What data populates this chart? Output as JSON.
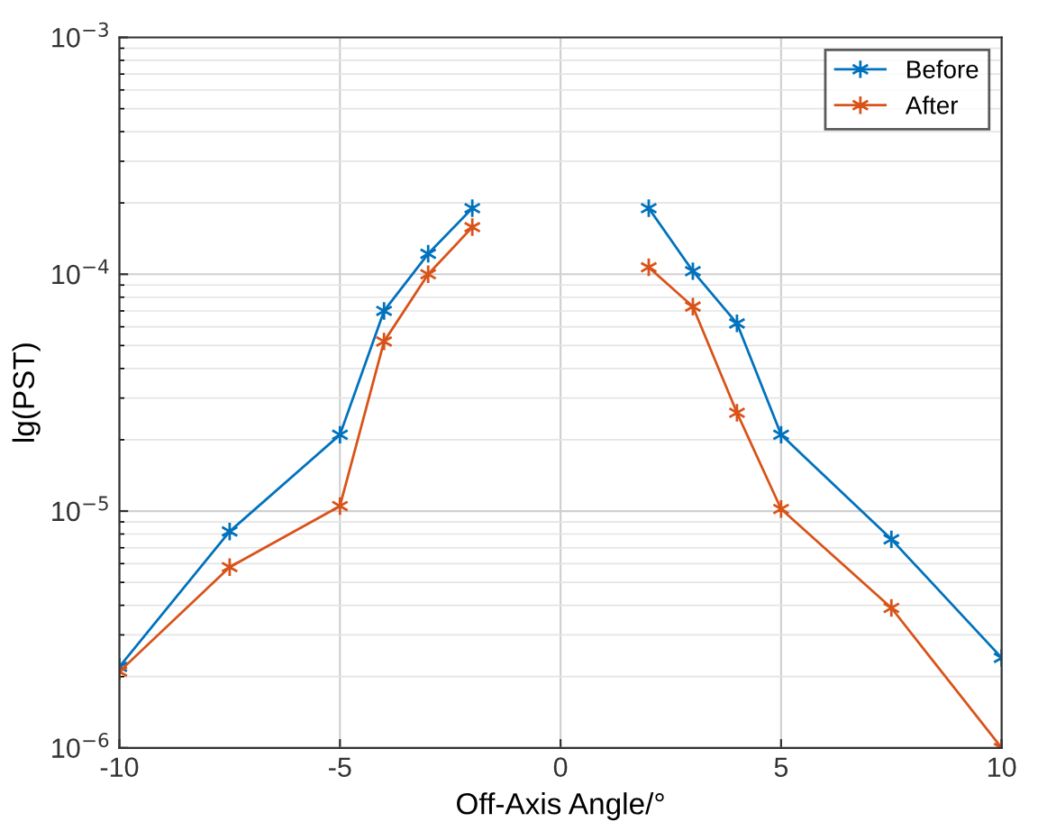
{
  "chart_data": {
    "type": "line",
    "xlabel": "Off-Axis Angle/°",
    "ylabel": "lg(PST)",
    "log": "y",
    "x": [
      -10,
      -7.5,
      -5,
      -4,
      -3,
      -2,
      0,
      2,
      3,
      4,
      5,
      7.5,
      10
    ],
    "series": [
      {
        "name": "Before",
        "color": "#0072bd",
        "values": [
          2.2e-06,
          8.2e-06,
          2.1e-05,
          7e-05,
          0.000122,
          0.00019,
          null,
          0.00019,
          0.000103,
          6.2e-05,
          2.1e-05,
          7.6e-06,
          2.4e-06
        ]
      },
      {
        "name": "After",
        "color": "#d95319",
        "values": [
          2.1e-06,
          5.8e-06,
          1.05e-05,
          5.2e-05,
          0.0001,
          0.000158,
          null,
          0.000107,
          7.3e-05,
          2.6e-05,
          1.02e-05,
          3.9e-06,
          1e-06
        ]
      }
    ],
    "xlim": [
      -10,
      10
    ],
    "xticks": [
      -10,
      -5,
      0,
      5,
      10
    ],
    "ylim": [
      1e-06,
      0.001
    ],
    "yticks": [
      {
        "value": 1e-06,
        "label": "10$^{−6}$"
      },
      {
        "value": 1e-05,
        "label": "10$^{−5}$"
      },
      {
        "value": 0.0001,
        "label": "10$^{−4}$"
      },
      {
        "value": 0.001,
        "label": "10$^{−3}$"
      }
    ],
    "grid": true,
    "legend": "top right",
    "marker": "cross",
    "line_style": "solid"
  }
}
